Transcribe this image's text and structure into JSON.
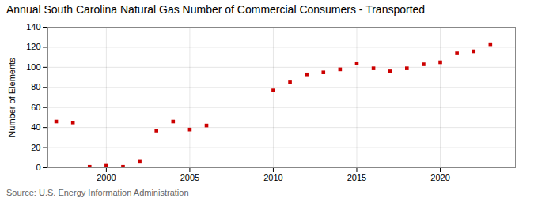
{
  "chart_data": {
    "type": "scatter",
    "title": "Annual South Carolina Natural Gas Number of Commercial Consumers - Transported",
    "ylabel": "Number of Elements",
    "source": "Source: U.S. Energy Information Administration",
    "x": [
      1997,
      1998,
      1999,
      2000,
      2001,
      2002,
      2003,
      2004,
      2005,
      2006,
      2010,
      2011,
      2012,
      2013,
      2014,
      2015,
      2016,
      2017,
      2018,
      2019,
      2020,
      2021,
      2022,
      2023
    ],
    "values": [
      46,
      45,
      1,
      2,
      1,
      6,
      37,
      46,
      38,
      42,
      77,
      85,
      93,
      95,
      98,
      104,
      99,
      96,
      99,
      103,
      105,
      114,
      116,
      123
    ],
    "color": "#cc0000",
    "marker": "square",
    "xlim": [
      1996.5,
      2024.5
    ],
    "xticks": [
      2000,
      2005,
      2010,
      2015,
      2020
    ],
    "ylim": [
      0,
      140
    ],
    "yticks": [
      0,
      20,
      40,
      60,
      80,
      100,
      120,
      140
    ],
    "grid": true
  }
}
